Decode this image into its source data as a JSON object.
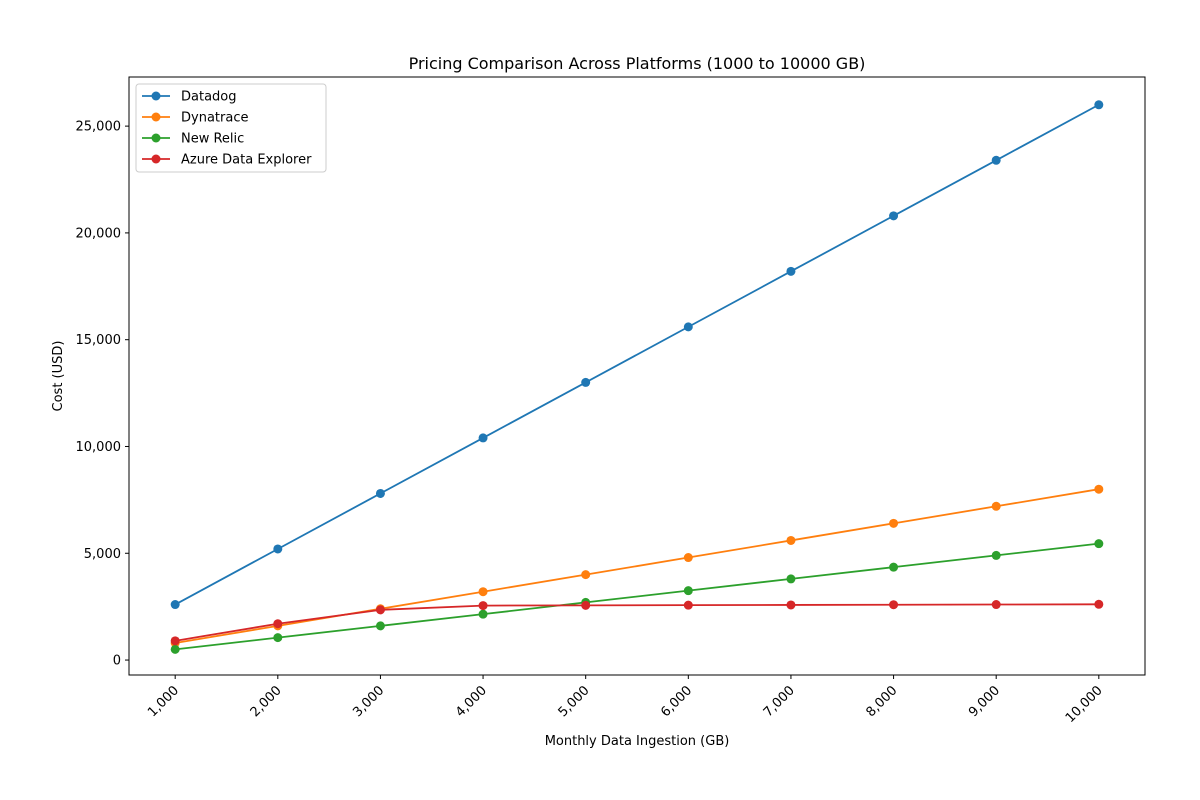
{
  "chart_data": {
    "type": "line",
    "title": "Pricing Comparison Across Platforms (1000 to 10000 GB)",
    "xlabel": "Monthly Data Ingestion (GB)",
    "ylabel": "Cost (USD)",
    "x": [
      1000,
      2000,
      3000,
      4000,
      5000,
      6000,
      7000,
      8000,
      9000,
      10000
    ],
    "x_tick_labels": [
      "1,000",
      "2,000",
      "3,000",
      "4,000",
      "5,000",
      "6,000",
      "7,000",
      "8,000",
      "9,000",
      "10,000"
    ],
    "y_ticks": [
      0,
      5000,
      10000,
      15000,
      20000,
      25000
    ],
    "y_tick_labels": [
      "0",
      "5,000",
      "10,000",
      "15,000",
      "20,000",
      "25,000"
    ],
    "xlim": [
      550,
      10450
    ],
    "ylim": [
      -700,
      27300
    ],
    "grid": false,
    "legend_position": "top-left",
    "series": [
      {
        "name": "Datadog",
        "color": "#1f77b4",
        "values": [
          2600,
          5200,
          7800,
          10400,
          13000,
          15600,
          18200,
          20800,
          23400,
          26000
        ]
      },
      {
        "name": "Dynatrace",
        "color": "#ff7f0e",
        "values": [
          800,
          1600,
          2400,
          3200,
          4000,
          4800,
          5600,
          6400,
          7200,
          8000
        ]
      },
      {
        "name": "New Relic",
        "color": "#2ca02c",
        "values": [
          500,
          1050,
          1600,
          2150,
          2700,
          3250,
          3800,
          4350,
          4900,
          5450
        ]
      },
      {
        "name": "Azure Data Explorer",
        "color": "#d62728",
        "values": [
          900,
          1700,
          2350,
          2550,
          2560,
          2570,
          2580,
          2590,
          2600,
          2610
        ]
      }
    ]
  }
}
